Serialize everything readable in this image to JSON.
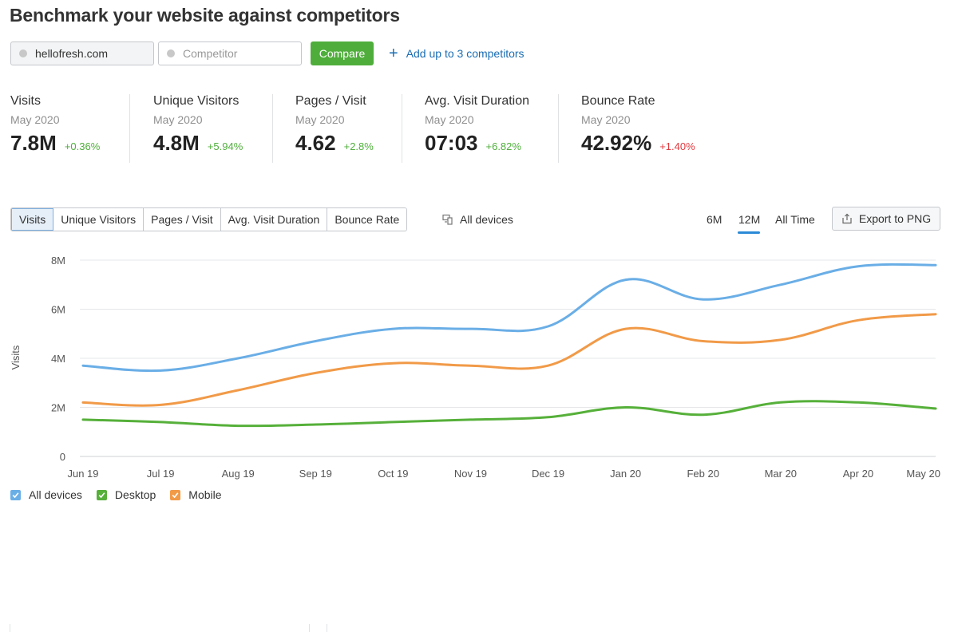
{
  "page": {
    "title": "Benchmark your website against competitors"
  },
  "compare": {
    "domain_value": "hellofresh.com",
    "competitor_placeholder": "Competitor",
    "compare_label": "Compare",
    "add_label": "Add up to 3 competitors"
  },
  "metrics": [
    {
      "name": "Visits",
      "period": "May 2020",
      "value": "7.8M",
      "change": "+0.36%",
      "trend": "positive"
    },
    {
      "name": "Unique Visitors",
      "period": "May 2020",
      "value": "4.8M",
      "change": "+5.94%",
      "trend": "positive"
    },
    {
      "name": "Pages / Visit",
      "period": "May 2020",
      "value": "4.62",
      "change": "+2.8%",
      "trend": "positive"
    },
    {
      "name": "Avg. Visit Duration",
      "period": "May 2020",
      "value": "07:03",
      "change": "+6.82%",
      "trend": "positive"
    },
    {
      "name": "Bounce Rate",
      "period": "May 2020",
      "value": "42.92%",
      "change": "+1.40%",
      "trend": "negative"
    }
  ],
  "metric_tabs": {
    "items": [
      "Visits",
      "Unique Visitors",
      "Pages / Visit",
      "Avg. Visit Duration",
      "Bounce Rate"
    ],
    "active": "Visits"
  },
  "device_filter": {
    "label": "All devices",
    "icon": "devices-icon"
  },
  "period_tabs": {
    "items": [
      "6M",
      "12M",
      "All Time"
    ],
    "active": "12M"
  },
  "export": {
    "label": "Export to PNG",
    "icon": "export-icon"
  },
  "colors": {
    "all_devices": "#6aaee6",
    "desktop": "#56b03a",
    "mobile": "#f19a48",
    "compare_button": "#4fae3b",
    "link": "#1a6db3",
    "positive": "#4fae3b",
    "negative": "#e0393e"
  },
  "chart_data": {
    "type": "line",
    "title": "",
    "xlabel": "",
    "ylabel": "Visits",
    "x": [
      "Jun 19",
      "Jul 19",
      "Aug 19",
      "Sep 19",
      "Oct 19",
      "Nov 19",
      "Dec 19",
      "Jan 20",
      "Feb 20",
      "Mar 20",
      "Apr 20",
      "May 20"
    ],
    "y_ticks": [
      "0",
      "2M",
      "4M",
      "6M",
      "8M"
    ],
    "ylim": [
      0,
      8000000
    ],
    "grid": true,
    "legend_position": "bottom-left",
    "series": [
      {
        "name": "All devices",
        "color": "#6aaee6",
        "values": [
          3700000,
          3500000,
          4000000,
          4700000,
          5200000,
          5200000,
          5300000,
          7200000,
          6400000,
          7000000,
          7750000,
          7800000
        ]
      },
      {
        "name": "Desktop",
        "color": "#56b03a",
        "values": [
          1500000,
          1400000,
          1250000,
          1300000,
          1400000,
          1500000,
          1600000,
          2000000,
          1700000,
          2200000,
          2200000,
          1950000
        ]
      },
      {
        "name": "Mobile",
        "color": "#f19a48",
        "values": [
          2200000,
          2100000,
          2700000,
          3400000,
          3800000,
          3700000,
          3700000,
          5200000,
          4700000,
          4750000,
          5550000,
          5800000
        ]
      }
    ]
  }
}
